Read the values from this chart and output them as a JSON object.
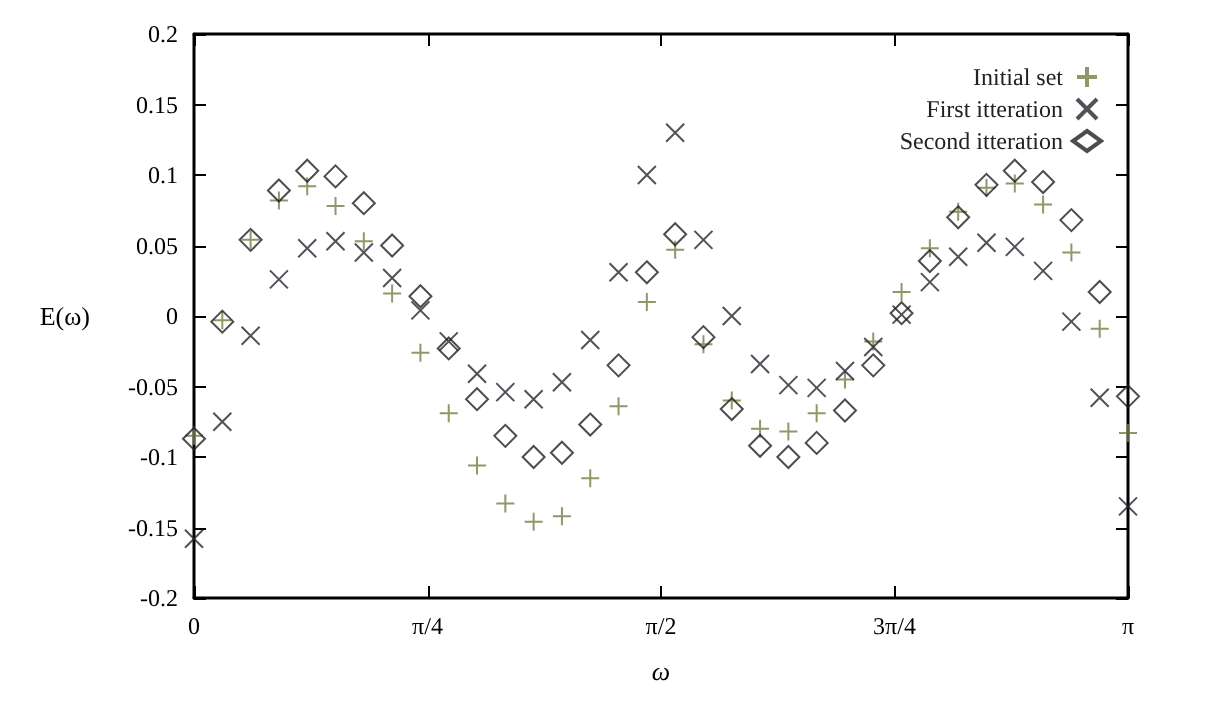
{
  "chart_data": {
    "type": "scatter",
    "xlabel": "ω",
    "ylabel": "E(ω)",
    "legend": "top right",
    "grid": false,
    "x": [
      0,
      0.0952,
      0.1904,
      0.2856,
      0.3808,
      0.476,
      0.5712,
      0.6664,
      0.7616,
      0.8568,
      0.952,
      1.0472,
      1.1424,
      1.2376,
      1.3328,
      1.428,
      1.5232,
      1.6184,
      1.7136,
      1.8088,
      1.904,
      1.9992,
      2.0944,
      2.1896,
      2.2848,
      2.38,
      2.4752,
      2.5704,
      2.6656,
      2.7608,
      2.856,
      2.9512,
      3.0464,
      3.1416
    ],
    "xlim": [
      0,
      3.1416
    ],
    "xticks": [
      0,
      {
        "value": 0.7854,
        "label": "π/4"
      },
      {
        "value": 1.5708,
        "label": "π/2"
      },
      {
        "value": 2.3562,
        "label": "3π/4"
      },
      {
        "value": 3.1416,
        "label": "π"
      }
    ],
    "ylim": [
      -0.2,
      0.2
    ],
    "yticks": [
      -0.2,
      -0.15,
      -0.1,
      -0.05,
      0,
      0.05,
      0.1,
      0.15,
      0.2
    ],
    "series": [
      {
        "name": "Initial set",
        "color": "#7a7a45",
        "marker": "plus",
        "values": [
          -0.085,
          -0.003,
          0.054,
          0.082,
          0.092,
          0.078,
          0.053,
          0.016,
          -0.026,
          -0.069,
          -0.106,
          -0.133,
          -0.146,
          -0.142,
          -0.115,
          -0.064,
          0.01,
          0.047,
          -0.02,
          -0.06,
          -0.08,
          -0.082,
          -0.069,
          -0.045,
          -0.018,
          0.017,
          0.048,
          0.074,
          0.091,
          0.094,
          0.079,
          0.045,
          -0.009,
          -0.083
        ]
      },
      {
        "name": "First itteration",
        "color": "#252530",
        "marker": "cross",
        "values": [
          -0.158,
          -0.075,
          -0.014,
          0.026,
          0.048,
          0.053,
          0.045,
          0.027,
          0.004,
          -0.018,
          -0.041,
          -0.054,
          -0.059,
          -0.047,
          -0.017,
          0.031,
          0.1,
          0.13,
          0.054,
          0.0,
          -0.034,
          -0.049,
          -0.051,
          -0.039,
          -0.022,
          0.001,
          0.024,
          0.042,
          0.052,
          0.049,
          0.032,
          -0.004,
          -0.058,
          -0.135
        ]
      },
      {
        "name": "Second itteration",
        "color": "#202020",
        "marker": "diamond",
        "values": [
          -0.087,
          -0.004,
          0.054,
          0.089,
          0.103,
          0.099,
          0.08,
          0.05,
          0.014,
          -0.023,
          -0.059,
          -0.085,
          -0.1,
          -0.097,
          -0.077,
          -0.035,
          0.031,
          0.058,
          -0.015,
          -0.066,
          -0.092,
          -0.1,
          -0.09,
          -0.067,
          -0.035,
          0.002,
          0.039,
          0.07,
          0.093,
          0.103,
          0.095,
          0.068,
          0.017,
          -0.057
        ]
      }
    ]
  }
}
